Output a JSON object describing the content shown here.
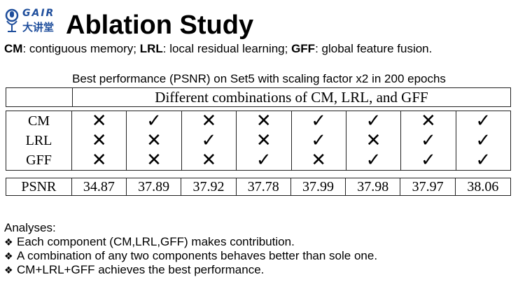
{
  "logo": {
    "brand": "GAIR",
    "brand_sub": "大讲堂"
  },
  "title": "Ablation Study",
  "legend": {
    "items": [
      {
        "abbr": "CM",
        "text": ": contiguous memory; "
      },
      {
        "abbr": "LRL",
        "text": ": local residual learning; "
      },
      {
        "abbr": "GFF",
        "text": ": global feature fusion."
      }
    ]
  },
  "caption": "Best performance (PSNR) on Set5 with scaling factor x2 in 200 epochs",
  "table": {
    "header": "Different combinations of CM, LRL, and GFF",
    "row_labels": [
      "CM",
      "LRL",
      "GFF"
    ],
    "psnr_label": "PSNR",
    "columns": [
      {
        "cm": "✕",
        "lrl": "✕",
        "gff": "✕",
        "psnr": "34.87"
      },
      {
        "cm": "✓",
        "lrl": "✕",
        "gff": "✕",
        "psnr": "37.89"
      },
      {
        "cm": "✕",
        "lrl": "✓",
        "gff": "✕",
        "psnr": "37.92"
      },
      {
        "cm": "✕",
        "lrl": "✕",
        "gff": "✓",
        "psnr": "37.78"
      },
      {
        "cm": "✓",
        "lrl": "✓",
        "gff": "✕",
        "psnr": "37.99"
      },
      {
        "cm": "✓",
        "lrl": "✕",
        "gff": "✓",
        "psnr": "37.98"
      },
      {
        "cm": "✕",
        "lrl": "✓",
        "gff": "✓",
        "psnr": "37.97"
      },
      {
        "cm": "✓",
        "lrl": "✓",
        "gff": "✓",
        "psnr": "38.06"
      }
    ]
  },
  "analyses": {
    "heading": "Analyses:",
    "bullet": "❖",
    "items": [
      "Each component (CM,LRL,GFF) makes contribution.",
      "A combination of any two components behaves better than sole one.",
      "CM+LRL+GFF achieves the best performance."
    ]
  }
}
